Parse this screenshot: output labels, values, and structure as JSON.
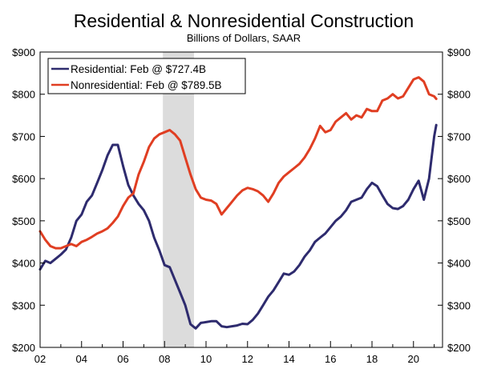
{
  "chart_data": {
    "type": "line",
    "title": "Residential & Nonresidential Construction",
    "subtitle": "Billions of Dollars, SAAR",
    "xlabel": "",
    "ylabel": "",
    "xlim": [
      2002.0,
      2021.4
    ],
    "ylim": [
      200,
      900
    ],
    "x_ticks": [
      2002,
      2004,
      2006,
      2008,
      2010,
      2012,
      2014,
      2016,
      2018,
      2020
    ],
    "x_tick_labels": [
      "02",
      "04",
      "06",
      "08",
      "10",
      "12",
      "14",
      "16",
      "18",
      "20"
    ],
    "y_ticks": [
      200,
      300,
      400,
      500,
      600,
      700,
      800,
      900
    ],
    "y_tick_labels": [
      "$200",
      "$300",
      "$400",
      "$500",
      "$600",
      "$700",
      "$800",
      "$900"
    ],
    "recession": {
      "start": 2007.92,
      "end": 2009.42
    },
    "legend_position": "top-left",
    "series": [
      {
        "name": "Residential",
        "legend_label": "Residential: Feb @ $727.4B",
        "color": "#2e2b6e",
        "x": [
          2002.0,
          2002.25,
          2002.5,
          2002.75,
          2003.0,
          2003.25,
          2003.5,
          2003.75,
          2004.0,
          2004.25,
          2004.5,
          2004.75,
          2005.0,
          2005.25,
          2005.5,
          2005.75,
          2006.0,
          2006.25,
          2006.5,
          2006.75,
          2007.0,
          2007.25,
          2007.5,
          2007.75,
          2008.0,
          2008.25,
          2008.5,
          2008.75,
          2009.0,
          2009.25,
          2009.5,
          2009.75,
          2010.0,
          2010.25,
          2010.5,
          2010.75,
          2011.0,
          2011.25,
          2011.5,
          2011.75,
          2012.0,
          2012.25,
          2012.5,
          2012.75,
          2013.0,
          2013.25,
          2013.5,
          2013.75,
          2014.0,
          2014.25,
          2014.5,
          2014.75,
          2015.0,
          2015.25,
          2015.5,
          2015.75,
          2016.0,
          2016.25,
          2016.5,
          2016.75,
          2017.0,
          2017.25,
          2017.5,
          2017.75,
          2018.0,
          2018.25,
          2018.5,
          2018.75,
          2019.0,
          2019.25,
          2019.5,
          2019.75,
          2020.0,
          2020.25,
          2020.5,
          2020.75,
          2021.0,
          2021.1
        ],
        "values": [
          385,
          405,
          400,
          410,
          420,
          432,
          460,
          500,
          515,
          545,
          560,
          590,
          620,
          655,
          680,
          680,
          630,
          585,
          560,
          540,
          525,
          500,
          460,
          430,
          395,
          390,
          360,
          330,
          300,
          255,
          245,
          258,
          260,
          262,
          262,
          250,
          248,
          250,
          252,
          256,
          255,
          265,
          280,
          300,
          320,
          335,
          355,
          375,
          372,
          380,
          395,
          415,
          430,
          450,
          460,
          470,
          485,
          500,
          510,
          525,
          545,
          550,
          555,
          575,
          590,
          582,
          560,
          540,
          530,
          528,
          535,
          550,
          575,
          595,
          550,
          600,
          700,
          727
        ]
      },
      {
        "name": "Nonresidential",
        "legend_label": "Nonresidential: Feb @ $789.5B",
        "color": "#e03e22",
        "x": [
          2002.0,
          2002.25,
          2002.5,
          2002.75,
          2003.0,
          2003.25,
          2003.5,
          2003.75,
          2004.0,
          2004.25,
          2004.5,
          2004.75,
          2005.0,
          2005.25,
          2005.5,
          2005.75,
          2006.0,
          2006.25,
          2006.5,
          2006.75,
          2007.0,
          2007.25,
          2007.5,
          2007.75,
          2008.0,
          2008.25,
          2008.5,
          2008.75,
          2009.0,
          2009.25,
          2009.5,
          2009.75,
          2010.0,
          2010.25,
          2010.5,
          2010.75,
          2011.0,
          2011.25,
          2011.5,
          2011.75,
          2012.0,
          2012.25,
          2012.5,
          2012.75,
          2013.0,
          2013.25,
          2013.5,
          2013.75,
          2014.0,
          2014.25,
          2014.5,
          2014.75,
          2015.0,
          2015.25,
          2015.5,
          2015.75,
          2016.0,
          2016.25,
          2016.5,
          2016.75,
          2017.0,
          2017.25,
          2017.5,
          2017.75,
          2018.0,
          2018.25,
          2018.5,
          2018.75,
          2019.0,
          2019.25,
          2019.5,
          2019.75,
          2020.0,
          2020.25,
          2020.5,
          2020.75,
          2021.0,
          2021.1
        ],
        "values": [
          475,
          455,
          440,
          435,
          435,
          440,
          445,
          440,
          450,
          455,
          462,
          470,
          475,
          482,
          495,
          510,
          535,
          555,
          565,
          610,
          640,
          675,
          695,
          705,
          710,
          715,
          705,
          690,
          650,
          610,
          575,
          555,
          550,
          548,
          540,
          515,
          530,
          545,
          560,
          572,
          578,
          575,
          570,
          560,
          545,
          565,
          590,
          605,
          615,
          625,
          635,
          650,
          670,
          695,
          725,
          710,
          715,
          735,
          745,
          755,
          740,
          750,
          745,
          765,
          760,
          760,
          785,
          790,
          800,
          790,
          795,
          815,
          835,
          840,
          830,
          800,
          795,
          789
        ]
      }
    ]
  }
}
